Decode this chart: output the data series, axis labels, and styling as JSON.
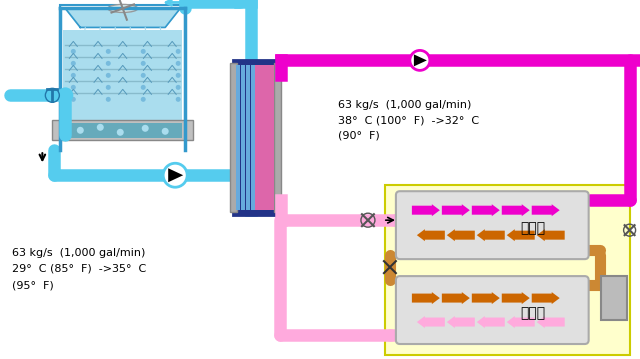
{
  "bg_color": "#ffffff",
  "yellow_bg": "#ffffcc",
  "blue_pipe": "#55ccee",
  "blue_dark": "#2255aa",
  "magenta_pipe": "#ee00cc",
  "pink_pipe": "#ffaadd",
  "orange_arrow": "#cc6600",
  "tower_fill": "#aaddee",
  "tower_blue": "#3399cc",
  "hx_blue": "#3366cc",
  "hx_frame": "#223388",
  "gray_light": "#cccccc",
  "gray_mid": "#999999",
  "brown_pipe": "#cc8833",
  "text1_line1": "63 kg/s  (1,000 gal/min)",
  "text1_line2": "38°  C (100°  F)  ->32°  C",
  "text1_line3": "(90°  F)",
  "text2_line1": "63 kg/s  (1,000 gal/min)",
  "text2_line2": "29°  C (85°  F)  ->35°  C",
  "text2_line3": "(95°  F)",
  "condenser_label": "冷凝器",
  "evaporator_label": "蒸发器"
}
